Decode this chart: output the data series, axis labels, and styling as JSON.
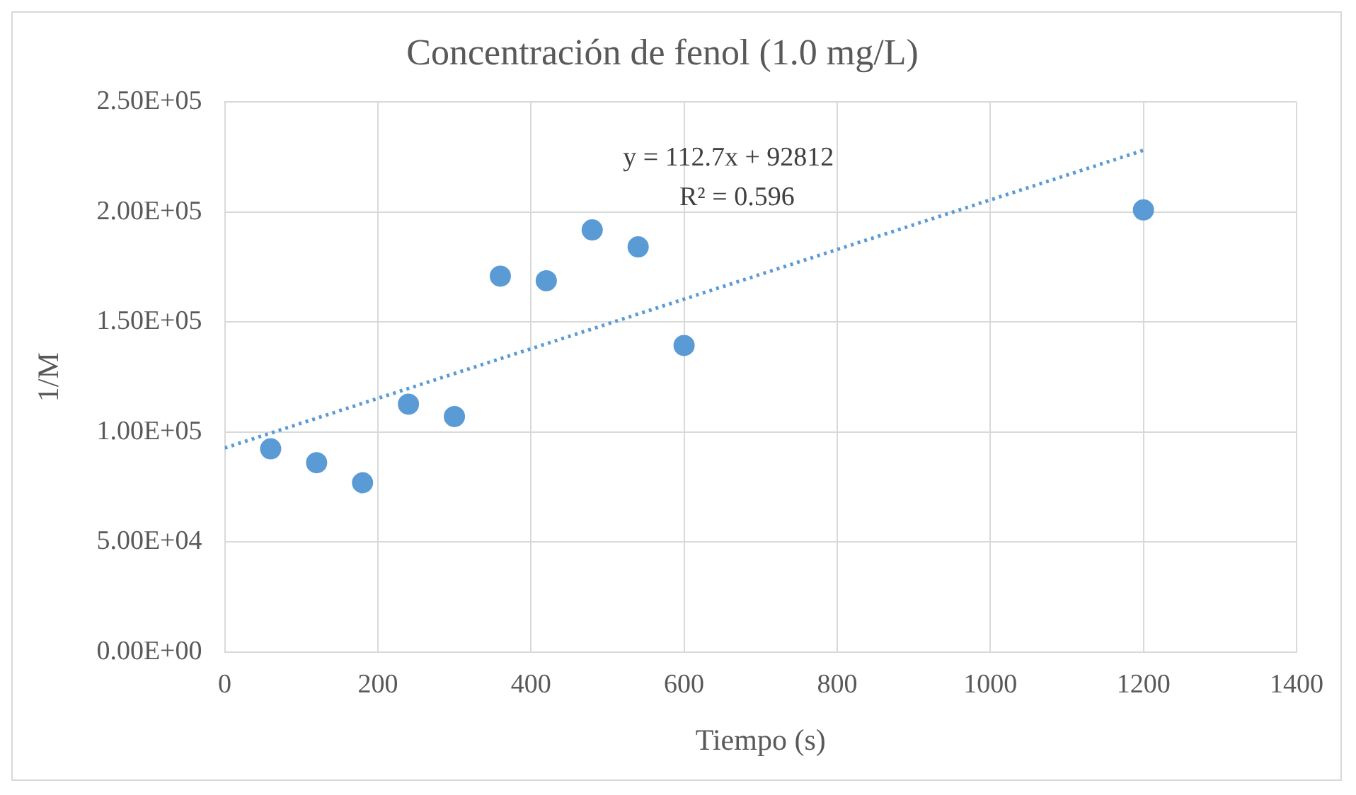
{
  "chart_data": {
    "type": "scatter",
    "title": "Concentración de fenol (1.0 mg/L)",
    "xlabel": "Tiempo (s)",
    "ylabel": "1/M",
    "annotations": [
      "y = 112.7x + 92812",
      "R² = 0.596"
    ],
    "series": [
      {
        "type": "scatter",
        "color": "#5b9bd5",
        "marker": "circle",
        "x": [
          60,
          120,
          180,
          240,
          300,
          360,
          420,
          480,
          540,
          600,
          1200
        ],
        "values": [
          92400,
          86100,
          77000,
          112700,
          107100,
          170900,
          168800,
          191900,
          184200,
          139400,
          201000
        ]
      },
      {
        "type": "line",
        "color": "#5b9bd5",
        "marker": "none",
        "line_style": "dotted",
        "x": [
          0,
          1200
        ],
        "values": [
          92800,
          228100
        ]
      }
    ],
    "xlim": [
      0,
      1400
    ],
    "xticks": [
      0,
      200,
      400,
      600,
      800,
      1000,
      1200,
      1400
    ],
    "ylim": [
      0,
      250000
    ],
    "yticks": [
      {
        "value": 0,
        "label": "0.00E+00"
      },
      {
        "value": 50000,
        "label": "5.00E+04"
      },
      {
        "value": 100000,
        "label": "1.00E+05"
      },
      {
        "value": 150000,
        "label": "1.50E+05"
      },
      {
        "value": 200000,
        "label": "2.00E+05"
      },
      {
        "value": 250000,
        "label": "2.50E+05"
      }
    ],
    "grid": true,
    "legend": false
  }
}
